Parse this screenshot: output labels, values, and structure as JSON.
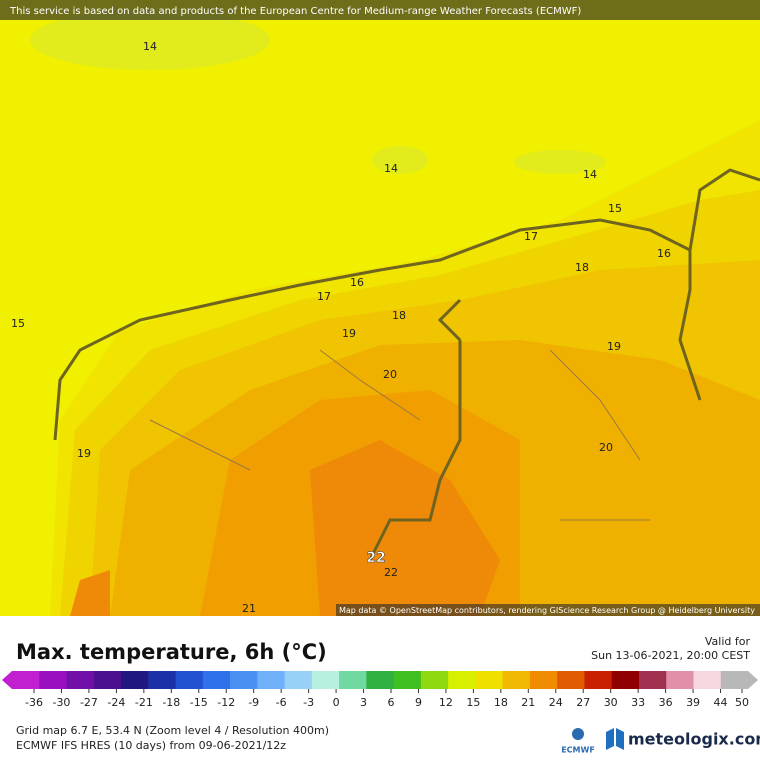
{
  "header": {
    "notice": "This service is based on data and products of the European Centre for Medium-range Weather Forecasts (ECMWF)"
  },
  "map": {
    "contour_labels": [
      14,
      14,
      14,
      15,
      15,
      16,
      16,
      17,
      17,
      18,
      18,
      19,
      19,
      19,
      20,
      20,
      22,
      22,
      21
    ],
    "attribution": "Map data © OpenStreetMap contributors, rendering GIScience Research Group @ Heidelberg University"
  },
  "legend": {
    "title": "Max. temperature, 6h (°C)",
    "valid_label": "Valid for",
    "valid_time": "Sun 13-06-2021, 20:00 CEST",
    "ticks": [
      -36,
      -30,
      -27,
      -24,
      -21,
      -18,
      -15,
      -12,
      -9,
      -6,
      -3,
      0,
      3,
      6,
      9,
      12,
      15,
      18,
      21,
      24,
      27,
      30,
      33,
      36,
      39,
      44,
      50
    ],
    "colors": [
      "#c020d0",
      "#9a10c0",
      "#7010a8",
      "#4a1090",
      "#201880",
      "#1c30a8",
      "#2050d0",
      "#3070e8",
      "#4a90f0",
      "#70b0f8",
      "#98d0f8",
      "#b8f0e0",
      "#70d8a0",
      "#30b040",
      "#40c020",
      "#90d810",
      "#d8f000",
      "#f0e000",
      "#f0b800",
      "#f08c00",
      "#e05a00",
      "#c82000",
      "#900000",
      "#a03050",
      "#e090a8",
      "#f8d8e0",
      "#b8b8b8"
    ]
  },
  "footer": {
    "grid_info": "Grid map 6.7 E, 53.4 N (Zoom level 4 / Resolution 400m)",
    "model": "ECMWF IFS HRES (10 days) from 09-06-2021/12z",
    "ecmwf": "ECMWF",
    "brand": "meteologix.com"
  }
}
